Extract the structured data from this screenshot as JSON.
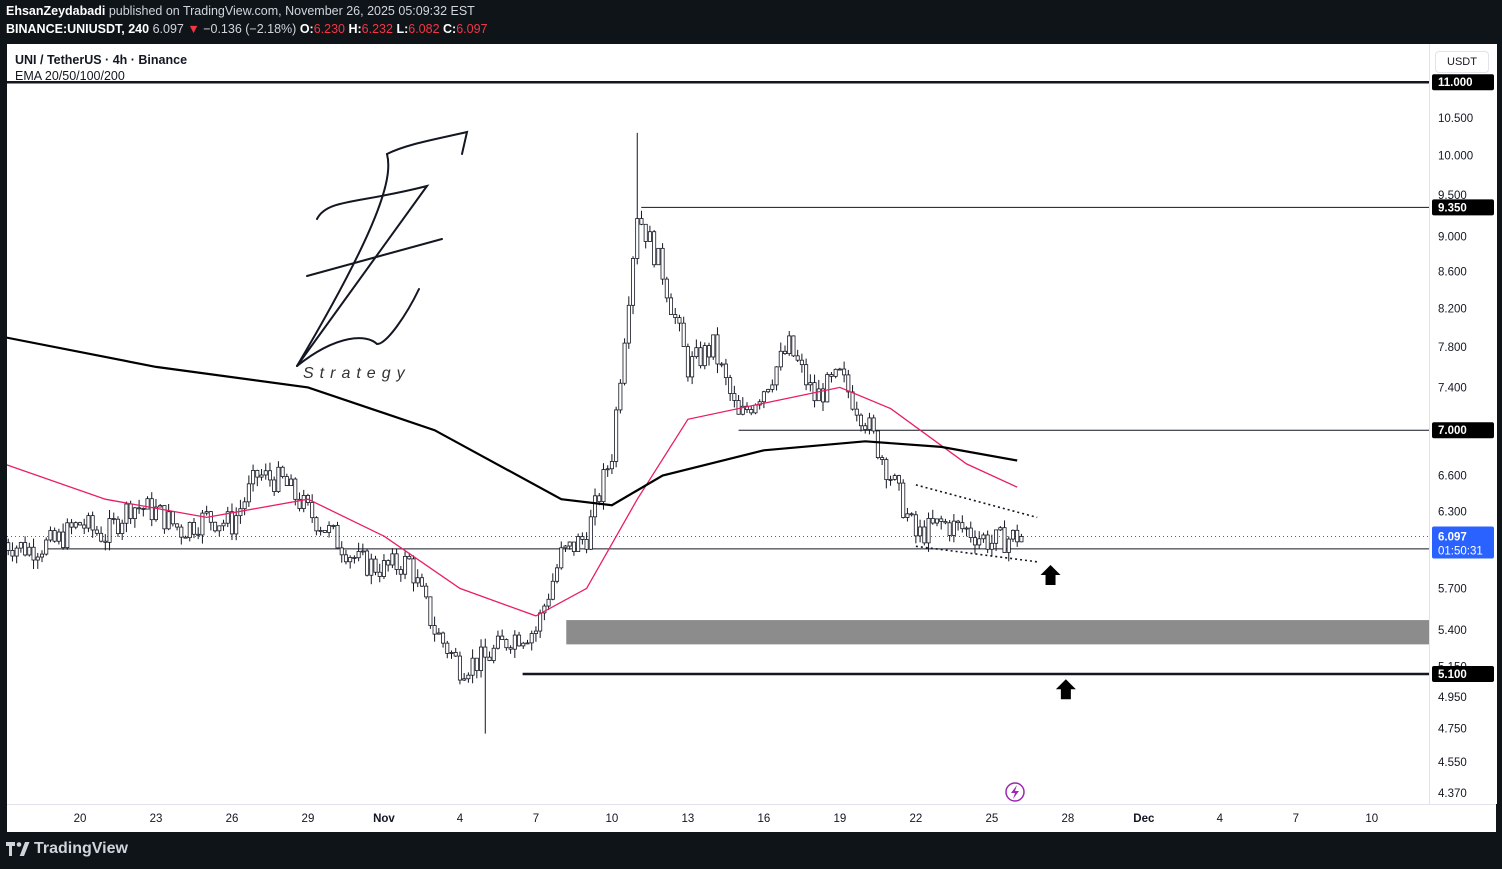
{
  "header": {
    "author": "EhsanZeydabadi",
    "published_text": "published on TradingView.com, November 26, 2025 05:09:32 EST",
    "symbol_line": "BINANCE:UNIUSDT, 240",
    "last_price": "6.097",
    "change_arrow": "▼",
    "change": "−0.136 (−2.18%)",
    "open_label": "O:",
    "open": "6.230",
    "high_label": "H:",
    "high": "6.232",
    "low_label": "L:",
    "low": "6.082",
    "close_label": "C:",
    "close": "6.097"
  },
  "legend": {
    "title": "UNI / TetherUS · 4h · Binance",
    "indicator": "EMA 20/50/100/200"
  },
  "price_axis": {
    "currency": "USDT",
    "badges": [
      {
        "price": 11.0,
        "label": "11.000"
      },
      {
        "price": 9.35,
        "label": "9.350"
      },
      {
        "price": 7.0,
        "label": "7.000"
      },
      {
        "price": 5.1,
        "label": "5.100"
      }
    ],
    "last_price_label": "6.097",
    "countdown": "01:50:31"
  },
  "watermark_text": "Strategy",
  "footer": {
    "brand": "TradingView"
  },
  "colors": {
    "up": "#089981",
    "down": "#f23645",
    "ema_fast": "#e91e63",
    "ema_slow": "#000000",
    "zone": "#8c8c8c",
    "accent": "#2962ff",
    "background": "#ffffff",
    "frame": "#0f1419"
  },
  "chart_data": {
    "type": "candlestick",
    "title": "UNI / TetherUS · 4h · Binance",
    "xlabel": "",
    "ylabel": "USDT",
    "y_scale": "log",
    "ylim": [
      4.33,
      11.5
    ],
    "x_ticks": [
      "20",
      "23",
      "26",
      "29",
      "Nov",
      "4",
      "7",
      "10",
      "13",
      "16",
      "19",
      "22",
      "25",
      "28",
      "Dec",
      "4",
      "7",
      "10"
    ],
    "y_ticks": [
      4.37,
      4.55,
      4.75,
      4.95,
      5.15,
      5.4,
      5.7,
      6.0,
      6.3,
      6.6,
      7.0,
      7.4,
      7.8,
      8.2,
      8.6,
      9.0,
      9.35,
      9.5,
      10.0,
      10.5,
      11.0
    ],
    "y_tick_labels": [
      "4.370",
      "4.550",
      "4.750",
      "4.950",
      "5.150",
      "5.400",
      "5.700",
      "6.000",
      "6.300",
      "6.600",
      "7.000",
      "7.400",
      "7.800",
      "8.200",
      "8.600",
      "9.000",
      "9.350",
      "9.500",
      "10.000",
      "10.500",
      "11.000"
    ],
    "price_path": [
      [
        "Oct 17",
        6.05
      ],
      [
        "Oct 18",
        6.0
      ],
      [
        "Oct 19",
        6.05
      ],
      [
        "Oct 20",
        6.2
      ],
      [
        "Oct 21",
        6.1
      ],
      [
        "Oct 22",
        6.35
      ],
      [
        "Oct 23",
        6.3
      ],
      [
        "Oct 24",
        6.15
      ],
      [
        "Oct 25",
        6.25
      ],
      [
        "Oct 26",
        6.2
      ],
      [
        "Oct 27",
        6.6
      ],
      [
        "Oct 28",
        6.55
      ],
      [
        "Oct 29",
        6.3
      ],
      [
        "Oct 30",
        6.1
      ],
      [
        "Oct 31",
        5.9
      ],
      [
        "Nov 1",
        5.85
      ],
      [
        "Nov 2",
        5.9
      ],
      [
        "Nov 3",
        5.4
      ],
      [
        "Nov 4",
        5.15
      ],
      [
        "Nov 5",
        5.2
      ],
      [
        "Nov 6",
        5.35
      ],
      [
        "Nov 7",
        5.4
      ],
      [
        "Nov 8",
        5.95
      ],
      [
        "Nov 9",
        6.1
      ],
      [
        "Nov 10",
        6.8
      ],
      [
        "Nov 11",
        9.3
      ],
      [
        "Nov 12",
        8.6
      ],
      [
        "Nov 13",
        7.6
      ],
      [
        "Nov 14",
        7.8
      ],
      [
        "Nov 15",
        7.1
      ],
      [
        "Nov 16",
        7.4
      ],
      [
        "Nov 17",
        7.8
      ],
      [
        "Nov 18",
        7.3
      ],
      [
        "Nov 19",
        7.5
      ],
      [
        "Nov 20",
        7.1
      ],
      [
        "Nov 21",
        6.6
      ],
      [
        "Nov 22",
        6.1
      ],
      [
        "Nov 23",
        6.2
      ],
      [
        "Nov 24",
        6.15
      ],
      [
        "Nov 25",
        6.05
      ],
      [
        "Nov 26",
        6.1
      ]
    ],
    "notable_highs": [
      [
        "Nov 11",
        10.3
      ]
    ],
    "notable_lows": [
      [
        "Nov 5",
        4.72
      ]
    ],
    "series": [
      {
        "name": "EMA 20/50/100/200"
      }
    ],
    "ema_fast": [
      [
        "Oct 17",
        6.7
      ],
      [
        "Oct 21",
        6.4
      ],
      [
        "Oct 25",
        6.25
      ],
      [
        "Oct 29",
        6.4
      ],
      [
        "Nov 1",
        6.1
      ],
      [
        "Nov 4",
        5.7
      ],
      [
        "Nov 7",
        5.5
      ],
      [
        "Nov 9",
        5.7
      ],
      [
        "Nov 11",
        6.4
      ],
      [
        "Nov 13",
        7.1
      ],
      [
        "Nov 16",
        7.25
      ],
      [
        "Nov 19",
        7.4
      ],
      [
        "Nov 21",
        7.2
      ],
      [
        "Nov 24",
        6.7
      ],
      [
        "Nov 26",
        6.5
      ]
    ],
    "ema_slow": [
      [
        "Oct 17",
        7.9
      ],
      [
        "Oct 23",
        7.6
      ],
      [
        "Oct 29",
        7.4
      ],
      [
        "Nov 3",
        7.0
      ],
      [
        "Nov 8",
        6.4
      ],
      [
        "Nov 10",
        6.35
      ],
      [
        "Nov 12",
        6.6
      ],
      [
        "Nov 16",
        6.82
      ],
      [
        "Nov 20",
        6.9
      ],
      [
        "Nov 23",
        6.85
      ],
      [
        "Nov 26",
        6.73
      ]
    ],
    "horizontal_levels": [
      {
        "price": 11.0,
        "label": "11.000"
      },
      {
        "price": 9.35,
        "label": "9.350"
      },
      {
        "price": 7.0,
        "label": "7.000"
      },
      {
        "price": 6.0,
        "label": ""
      },
      {
        "price": 5.1,
        "label": "5.100"
      }
    ],
    "zones": [
      {
        "from": 5.3,
        "to": 5.47
      }
    ],
    "triangle": {
      "upper": [
        [
          "Nov 22",
          6.52
        ],
        [
          "Nov 26",
          6.25
        ]
      ],
      "lower": [
        [
          "Nov 22",
          6.02
        ],
        [
          "Nov 26",
          5.9
        ]
      ]
    },
    "arrows": [
      {
        "date": "Nov 27",
        "price": 5.8
      },
      {
        "date": "Nov 28",
        "price": 5.0
      }
    ],
    "last": {
      "price": 6.097,
      "label": "6.097",
      "countdown": "01:50:31"
    },
    "grid": false,
    "legend_position": "top-left"
  }
}
